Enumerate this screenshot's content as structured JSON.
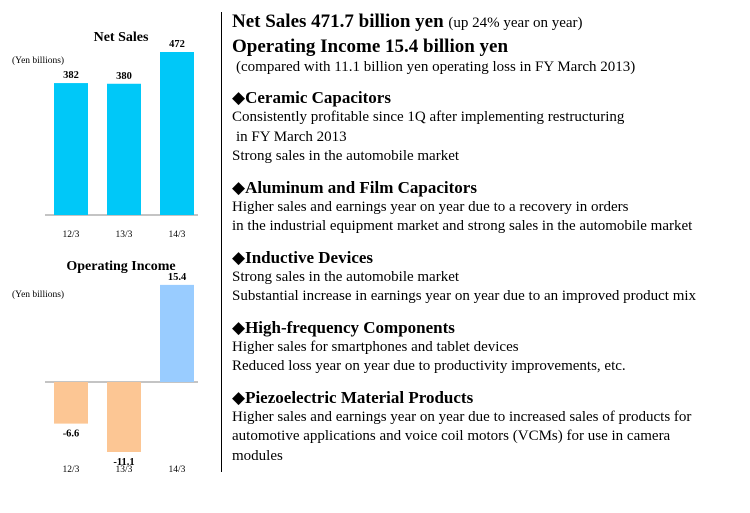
{
  "chart_data": [
    {
      "type": "bar",
      "title": "Net Sales",
      "ylabel": "(Yen billions)",
      "categories": [
        "12/3",
        "13/3",
        "14/3"
      ],
      "values": [
        382,
        380,
        472
      ],
      "value_labels": [
        "382",
        "380",
        "472"
      ],
      "ylim": [
        0,
        472
      ],
      "colors": [
        "#00c8f8",
        "#00c8f8",
        "#00c8f8"
      ],
      "grid": false,
      "legend": "none"
    },
    {
      "type": "bar",
      "title": "Operating Income",
      "ylabel": "(Yen billions)",
      "categories": [
        "12/3",
        "13/3",
        "14/3"
      ],
      "values": [
        -6.6,
        -11.1,
        15.4
      ],
      "value_labels": [
        "-6.6",
        "-11.1",
        "15.4"
      ],
      "ylim": [
        -11.1,
        15.4
      ],
      "colors": [
        "#fcc694",
        "#fcc694",
        "#99ccff"
      ],
      "grid": false,
      "legend": "none"
    }
  ],
  "summary": {
    "sales_label": "Net Sales  471.7 billion yen",
    "sales_note": "(up 24% year on year)",
    "income_label": "Operating Income 15.4 billion yen",
    "income_note": "(compared with 11.1 billion yen operating loss in FY March 2013)"
  },
  "sections": [
    {
      "title": "◆Ceramic Capacitors",
      "lines": [
        "Consistently profitable since 1Q after implementing restructuring",
        "in FY March 2013",
        "Strong sales in the automobile market"
      ]
    },
    {
      "title": "◆Aluminum and Film Capacitors",
      "lines": [
        "Higher sales and earnings year on year due to a recovery in orders",
        "in the industrial equipment market and strong sales in the automobile market"
      ]
    },
    {
      "title": "◆Inductive Devices",
      "lines": [
        "Strong sales in the automobile market",
        "Substantial increase in earnings year on year due to an improved product mix"
      ]
    },
    {
      "title": "◆High-frequency Components",
      "lines": [
        "Higher sales for smartphones and tablet devices",
        "Reduced loss year on year due to productivity improvements, etc."
      ]
    },
    {
      "title": "◆Piezoelectric Material Products",
      "lines": [
        "Higher sales and earnings year on year due to increased sales of products for",
        "automotive applications and voice coil motors (VCMs) for use in camera",
        "modules"
      ]
    }
  ]
}
